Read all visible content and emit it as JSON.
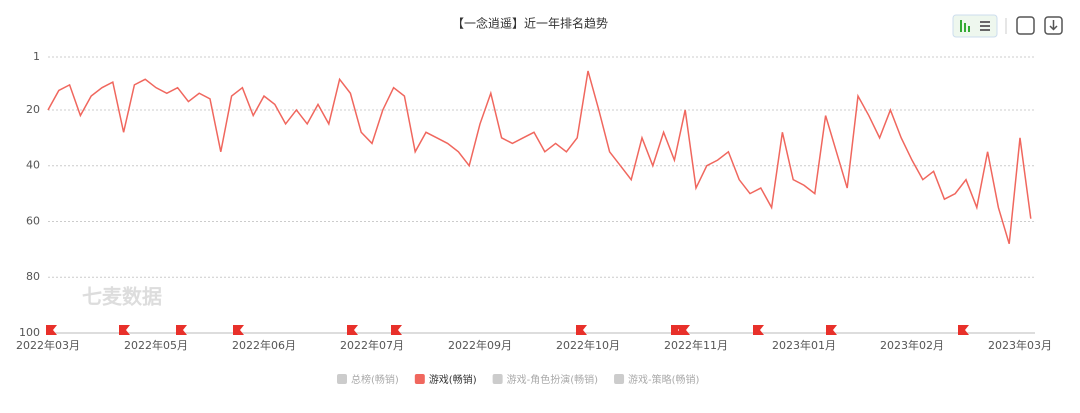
{
  "chart_data": {
    "type": "line",
    "title": "【一念逍遥】近一年排名趋势",
    "watermark": "七麦数据",
    "categories": [
      "2022年03月",
      null,
      null,
      null,
      null,
      null,
      null,
      null,
      null,
      null,
      "2022年05月",
      null,
      null,
      null,
      null,
      null,
      null,
      null,
      null,
      null,
      "2022年06月",
      null,
      null,
      null,
      null,
      null,
      null,
      null,
      null,
      null,
      "2022年07月",
      null,
      null,
      null,
      null,
      null,
      null,
      null,
      null,
      null,
      "2022年09月",
      null,
      null,
      null,
      null,
      null,
      null,
      null,
      null,
      null,
      "2022年10月",
      null,
      null,
      null,
      null,
      null,
      null,
      null,
      null,
      null,
      "2022年11月",
      null,
      null,
      null,
      null,
      null,
      null,
      null,
      null,
      null,
      "2023年01月",
      null,
      null,
      null,
      null,
      null,
      null,
      null,
      null,
      null,
      "2023年02月",
      null,
      null,
      null,
      null,
      null,
      null,
      null,
      null,
      null,
      "2023年03月",
      null
    ],
    "series": [
      {
        "name": "游戏(畅销)",
        "color": "#f0675e",
        "values": [
          20,
          13,
          11,
          22,
          15,
          12,
          10,
          28,
          11,
          9,
          12,
          14,
          12,
          17,
          14,
          16,
          35,
          15,
          12,
          22,
          15,
          18,
          25,
          20,
          25,
          18,
          25,
          9,
          14,
          28,
          32,
          20,
          12,
          15,
          35,
          28,
          30,
          32,
          35,
          40,
          25,
          14,
          30,
          32,
          30,
          28,
          35,
          32,
          35,
          30,
          6,
          20,
          35,
          40,
          45,
          30,
          40,
          28,
          38,
          20,
          48,
          40,
          38,
          35,
          45,
          50,
          48,
          55,
          28,
          45,
          47,
          50,
          22,
          35,
          48,
          15,
          22,
          30,
          20,
          30,
          38,
          45,
          42,
          52,
          50,
          45,
          55,
          35,
          55,
          68,
          30,
          59
        ]
      }
    ],
    "inactive_series": [
      "总榜(畅销)",
      "游戏-角色扮演(畅销)",
      "游戏-策略(畅销)"
    ],
    "ylim": [
      1,
      100
    ],
    "yticks": [
      1,
      20,
      40,
      60,
      80,
      100
    ],
    "y_inverted": true,
    "grid": true
  }
}
